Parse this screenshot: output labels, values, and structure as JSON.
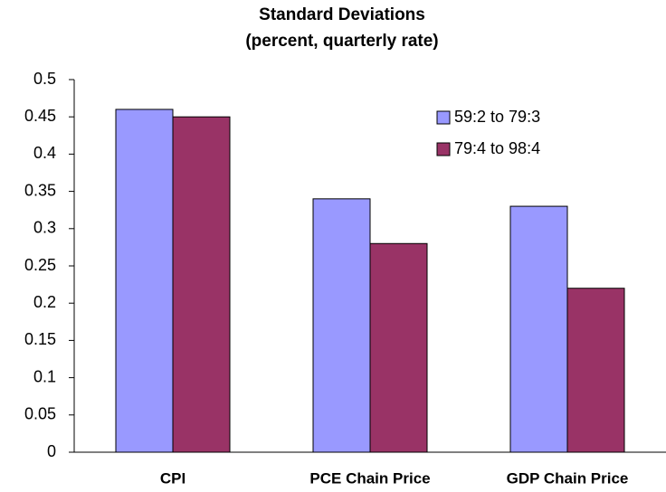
{
  "chart_data": {
    "type": "bar",
    "title": "Standard Deviations",
    "subtitle": "(percent, quarterly rate)",
    "categories": [
      "CPI",
      "PCE Chain Price",
      "GDP Chain Price"
    ],
    "series": [
      {
        "name": "59:2 to 79:3",
        "color": "#9999ff",
        "values": [
          0.46,
          0.34,
          0.33
        ]
      },
      {
        "name": "79:4 to 98:4",
        "color": "#993366",
        "values": [
          0.45,
          0.28,
          0.22
        ]
      }
    ],
    "ylim": [
      0,
      0.5
    ],
    "yticks": [
      0,
      0.05,
      0.1,
      0.15,
      0.2,
      0.25,
      0.3,
      0.35,
      0.4,
      0.45,
      0.5
    ],
    "grid": false,
    "legend": "top-right"
  }
}
